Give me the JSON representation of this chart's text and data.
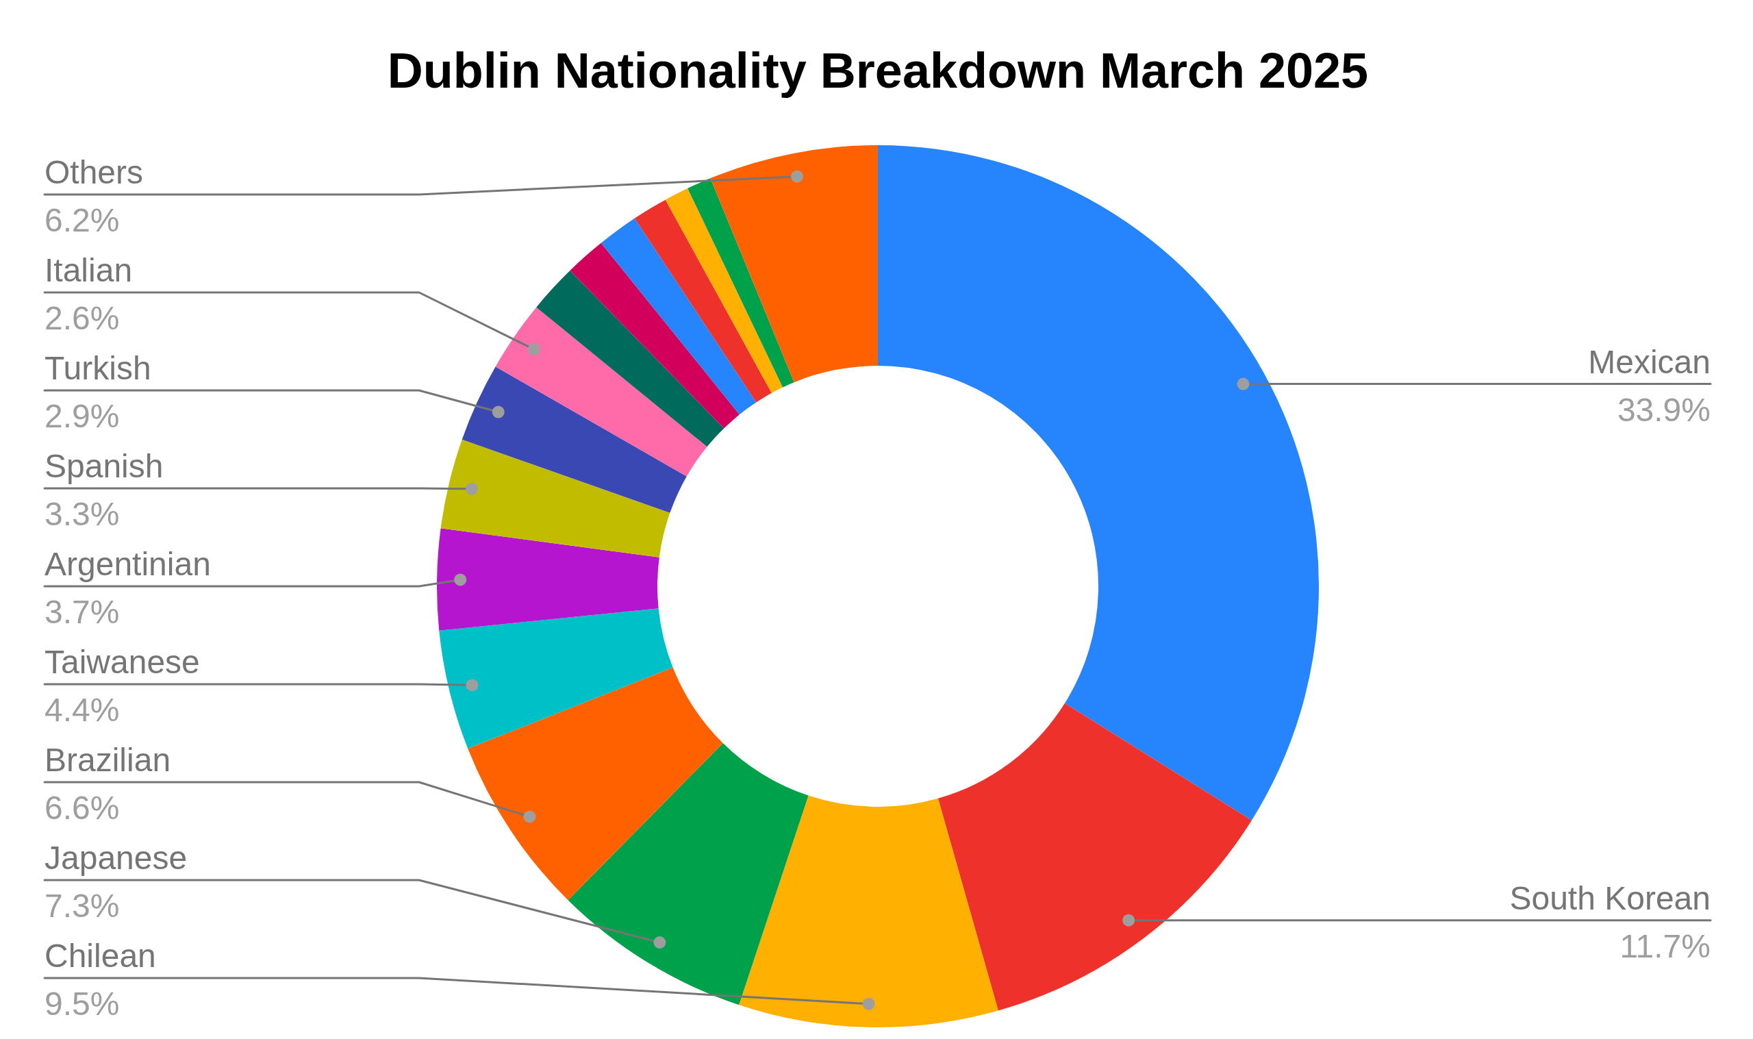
{
  "chart_data": {
    "type": "donut",
    "title": "Dublin Nationality Breakdown March 2025",
    "categories": [
      "Mexican",
      "South Korean",
      "Chilean",
      "Japanese",
      "Brazilian",
      "Taiwanese",
      "Argentinian",
      "Spanish",
      "Turkish",
      "Italian",
      null,
      null,
      null,
      null,
      null,
      null,
      "Others"
    ],
    "values": [
      33.9,
      11.7,
      9.5,
      7.3,
      6.6,
      4.4,
      3.7,
      3.3,
      2.9,
      2.6,
      1.8,
      1.5,
      1.5,
      1.3,
      0.9,
      0.9,
      6.2
    ],
    "colors": [
      "#2684fc",
      "#ef312b",
      "#ffb000",
      "#00a14b",
      "#ff6100",
      "#00c0c7",
      "#b515ce",
      "#c2bc00",
      "#3a48b3",
      "#ff6aa8",
      "#006b5c",
      "#d2005b",
      "#2684fc",
      "#ef312b",
      "#ffb000",
      "#00a14b",
      "#ff6100"
    ],
    "value_labels": [
      "33.9%",
      "11.7%",
      "9.5%",
      "7.3%",
      "6.6%",
      "4.4%",
      "3.7%",
      "3.3%",
      "2.9%",
      "2.6%",
      null,
      null,
      null,
      null,
      null,
      null,
      "6.2%"
    ]
  }
}
